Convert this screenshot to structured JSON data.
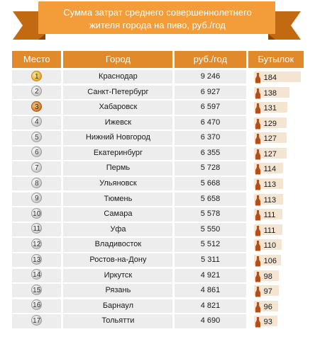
{
  "colors": {
    "accent": "#e08a2c",
    "banner": "#f29c3a",
    "banner_dark": "#c26a12",
    "row_bg": "#ededed",
    "bar_bg": "#f4e5d2",
    "bottle": "#b2501c"
  },
  "icon_names": [
    "medal-icon",
    "beer-bottle-icon"
  ],
  "title": "Сумма затрат среднего совершеннолетнего жителя города на пиво, руб./год",
  "headers": {
    "rank": "Место",
    "city": "Город",
    "rub": "руб./год",
    "bottles": "Бутылок"
  },
  "chart_data": {
    "type": "table",
    "title": "Сумма затрат среднего совершеннолетнего жителя города на пиво, руб./год",
    "columns": [
      "Место",
      "Город",
      "руб./год",
      "Бутылок"
    ],
    "rows": [
      {
        "rank": "1",
        "medal": "gold",
        "city": "Краснодар",
        "rub": "9 246",
        "bottles": "184"
      },
      {
        "rank": "2",
        "medal": "silver",
        "city": "Санкт-Петербург",
        "rub": "6 927",
        "bottles": "138"
      },
      {
        "rank": "3",
        "medal": "bronze",
        "city": "Хабаровск",
        "rub": "6 597",
        "bottles": "131"
      },
      {
        "rank": "4",
        "medal": "silver",
        "city": "Ижевск",
        "rub": "6 470",
        "bottles": "129"
      },
      {
        "rank": "5",
        "medal": "silver",
        "city": "Нижний Новгород",
        "rub": "6 370",
        "bottles": "127"
      },
      {
        "rank": "6",
        "medal": "silver",
        "city": "Екатеринбург",
        "rub": "6 355",
        "bottles": "127"
      },
      {
        "rank": "7",
        "medal": "silver",
        "city": "Пермь",
        "rub": "5 728",
        "bottles": "114"
      },
      {
        "rank": "8",
        "medal": "silver",
        "city": "Ульяновск",
        "rub": "5 668",
        "bottles": "113"
      },
      {
        "rank": "9",
        "medal": "silver",
        "city": "Тюмень",
        "rub": "5 658",
        "bottles": "113"
      },
      {
        "rank": "10",
        "medal": "silver",
        "city": "Самара",
        "rub": "5 578",
        "bottles": "111"
      },
      {
        "rank": "11",
        "medal": "silver",
        "city": "Уфа",
        "rub": "5 550",
        "bottles": "111"
      },
      {
        "rank": "12",
        "medal": "silver",
        "city": "Владивосток",
        "rub": "5 512",
        "bottles": "110"
      },
      {
        "rank": "13",
        "medal": "silver",
        "city": "Ростов-на-Дону",
        "rub": "5 311",
        "bottles": "106"
      },
      {
        "rank": "14",
        "medal": "silver",
        "city": "Иркутск",
        "rub": "4 921",
        "bottles": "98"
      },
      {
        "rank": "15",
        "medal": "silver",
        "city": "Рязань",
        "rub": "4 861",
        "bottles": "97"
      },
      {
        "rank": "16",
        "medal": "silver",
        "city": "Барнаул",
        "rub": "4 821",
        "bottles": "96"
      },
      {
        "rank": "17",
        "medal": "silver",
        "city": "Тольятти",
        "rub": "4 690",
        "bottles": "93"
      }
    ],
    "bottles_max": 184
  }
}
